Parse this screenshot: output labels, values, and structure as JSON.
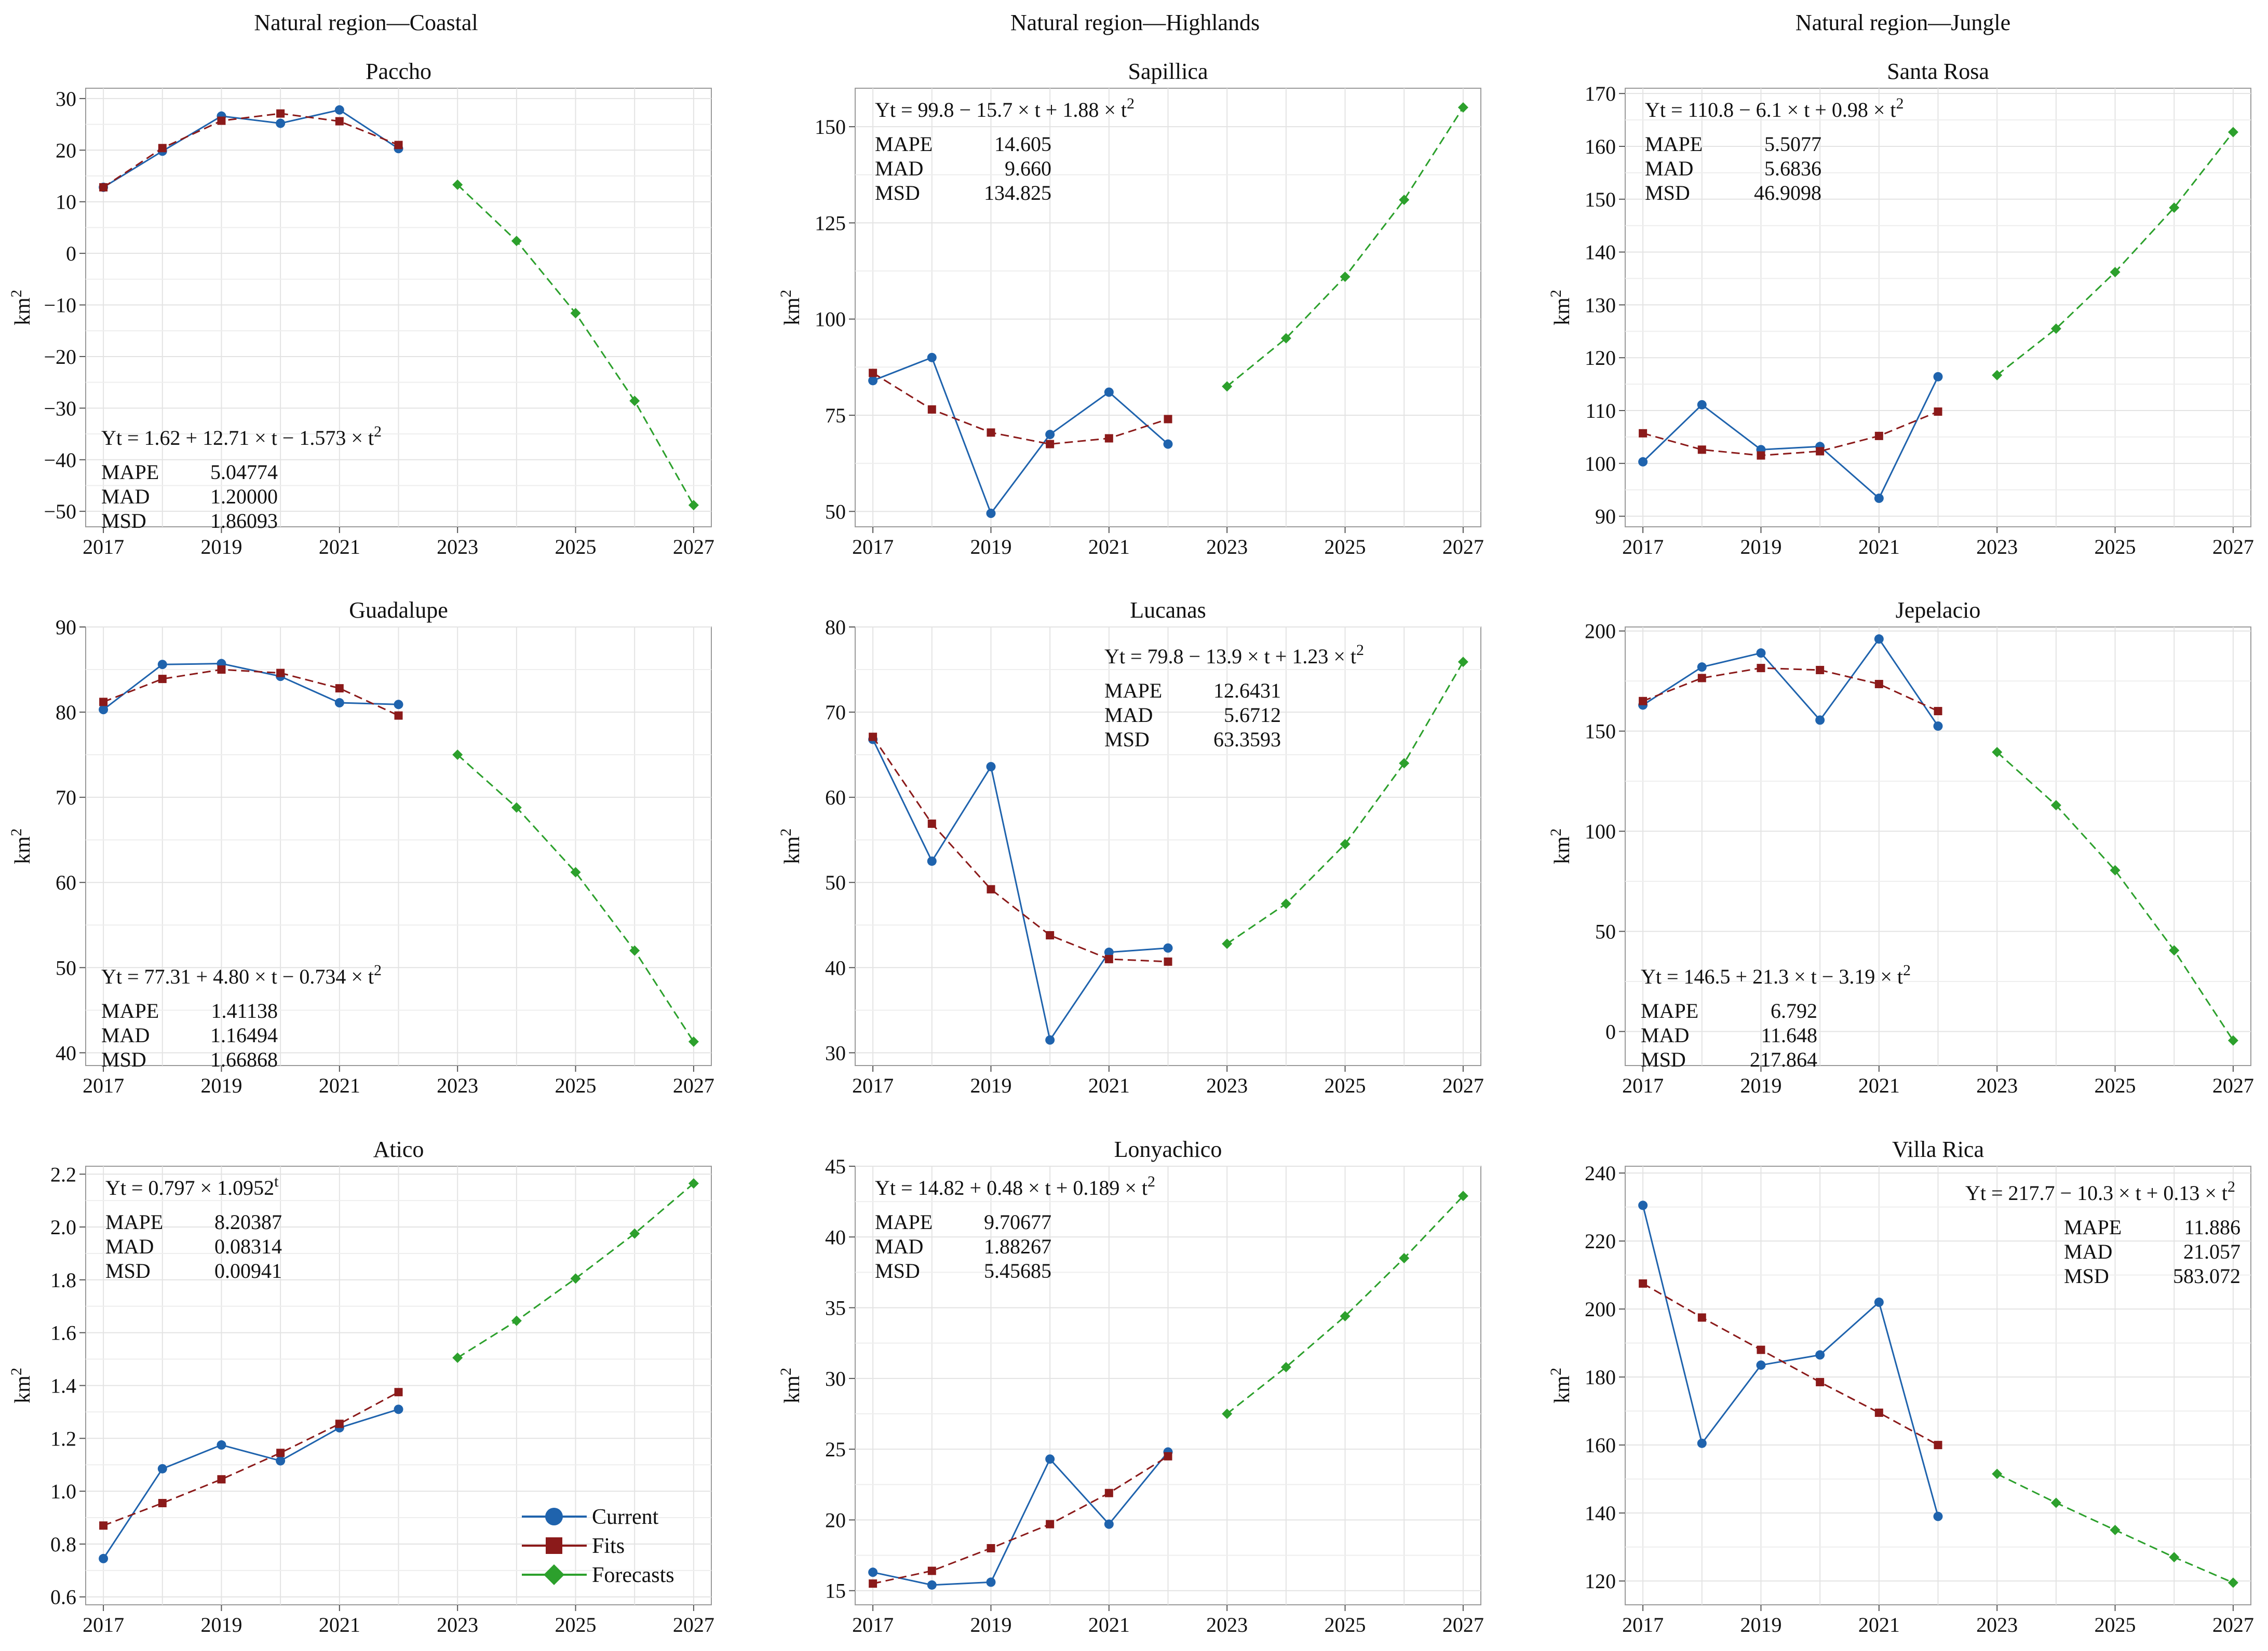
{
  "figure": {
    "region_headers": [
      "Natural region—Coastal",
      "Natural region—Highlands",
      "Natural region—Jungle"
    ],
    "legend": [
      "Current",
      "Fits",
      "Forecasts"
    ],
    "series_colors": {
      "Current": "#1f63ad",
      "Fits": "#8b1a1a",
      "Forecasts": "#2ca02c"
    }
  },
  "chart_data": [
    {
      "type": "line",
      "title": "Paccho",
      "region": "Natural region—Coastal",
      "xlabel": "",
      "ylabel": "km2",
      "x": [
        2017,
        2018,
        2019,
        2020,
        2021,
        2022,
        2023,
        2024,
        2025,
        2026,
        2027
      ],
      "xticks": [
        2017,
        2019,
        2021,
        2023,
        2025,
        2027
      ],
      "xticklabels": [
        "2017",
        "2019",
        "2021",
        "2023",
        "2025",
        "2027"
      ],
      "ylim": [
        -53,
        32
      ],
      "yticks": [
        -50,
        -40,
        -30,
        -20,
        -10,
        0,
        10,
        20,
        30
      ],
      "yticklabels": [
        "−50",
        "−40",
        "−30",
        "−20",
        "−10",
        "0",
        "10",
        "20",
        "30"
      ],
      "series": [
        {
          "name": "Current",
          "x": [
            2017,
            2018,
            2019,
            2020,
            2021,
            2022
          ],
          "values": [
            12.8,
            19.8,
            26.6,
            25.2,
            27.8,
            20.3
          ]
        },
        {
          "name": "Fits",
          "x": [
            2017,
            2018,
            2019,
            2020,
            2021,
            2022
          ],
          "values": [
            12.8,
            20.4,
            25.7,
            27.1,
            25.6,
            21.0
          ]
        },
        {
          "name": "Forecasts",
          "x": [
            2023,
            2024,
            2025,
            2026,
            2027
          ],
          "values": [
            13.3,
            2.4,
            -11.6,
            -28.6,
            -48.8
          ]
        }
      ],
      "equation": "Yt = 1.62 + 12.71 × t − 1.573 × t²",
      "stats": [
        [
          "MAPE",
          "5.04774"
        ],
        [
          "MAD",
          "1.20000"
        ],
        [
          "MSD",
          "1.86093"
        ]
      ],
      "anno_pos": "lower-left"
    },
    {
      "type": "line",
      "title": "Sapillica",
      "region": "Natural region—Highlands",
      "xlabel": "",
      "ylabel": "km2",
      "x": [
        2017,
        2018,
        2019,
        2020,
        2021,
        2022,
        2023,
        2024,
        2025,
        2026,
        2027
      ],
      "xticks": [
        2017,
        2019,
        2021,
        2023,
        2025,
        2027
      ],
      "xticklabels": [
        "2017",
        "2019",
        "2021",
        "2023",
        "2025",
        "2027"
      ],
      "ylim": [
        46,
        160
      ],
      "yticks": [
        50,
        75,
        100,
        125,
        150
      ],
      "yticklabels": [
        "50",
        "75",
        "100",
        "125",
        "150"
      ],
      "series": [
        {
          "name": "Current",
          "x": [
            2017,
            2018,
            2019,
            2020,
            2021,
            2022
          ],
          "values": [
            84,
            90,
            49.5,
            70,
            81,
            67.5
          ]
        },
        {
          "name": "Fits",
          "x": [
            2017,
            2018,
            2019,
            2020,
            2021,
            2022
          ],
          "values": [
            86,
            76.5,
            70.5,
            67.5,
            69,
            74
          ]
        },
        {
          "name": "Forecasts",
          "x": [
            2023,
            2024,
            2025,
            2026,
            2027
          ],
          "values": [
            82.5,
            95,
            111,
            131,
            155
          ]
        }
      ],
      "equation": "Yt = 99.8 − 15.7 × t + 1.88 × t²",
      "stats": [
        [
          "MAPE",
          "14.605"
        ],
        [
          "MAD",
          "9.660"
        ],
        [
          "MSD",
          "134.825"
        ]
      ],
      "anno_pos": "upper-left"
    },
    {
      "type": "line",
      "title": "Santa Rosa",
      "region": "Natural region—Jungle",
      "xlabel": "",
      "ylabel": "km2",
      "x": [
        2017,
        2018,
        2019,
        2020,
        2021,
        2022,
        2023,
        2024,
        2025,
        2026,
        2027
      ],
      "xticks": [
        2017,
        2019,
        2021,
        2023,
        2025,
        2027
      ],
      "xticklabels": [
        "2017",
        "2019",
        "2021",
        "2023",
        "2025",
        "2027"
      ],
      "ylim": [
        88,
        171
      ],
      "yticks": [
        90,
        100,
        110,
        120,
        130,
        140,
        150,
        160,
        170
      ],
      "yticklabels": [
        "90",
        "100",
        "110",
        "120",
        "130",
        "140",
        "150",
        "160",
        "170"
      ],
      "series": [
        {
          "name": "Current",
          "x": [
            2017,
            2018,
            2019,
            2020,
            2021,
            2022
          ],
          "values": [
            100.3,
            111.1,
            102.6,
            103.2,
            93.4,
            116.4
          ]
        },
        {
          "name": "Fits",
          "x": [
            2017,
            2018,
            2019,
            2020,
            2021,
            2022
          ],
          "values": [
            105.7,
            102.6,
            101.5,
            102.3,
            105.2,
            109.8
          ]
        },
        {
          "name": "Forecasts",
          "x": [
            2023,
            2024,
            2025,
            2026,
            2027
          ],
          "values": [
            116.7,
            125.5,
            136.2,
            148.4,
            162.7
          ]
        }
      ],
      "equation": "Yt = 110.8 − 6.1 × t + 0.98 × t²",
      "stats": [
        [
          "MAPE",
          "5.5077"
        ],
        [
          "MAD",
          "5.6836"
        ],
        [
          "MSD",
          "46.9098"
        ]
      ],
      "anno_pos": "upper-left"
    },
    {
      "type": "line",
      "title": "Guadalupe",
      "region": "Natural region—Coastal",
      "xlabel": "",
      "ylabel": "km2",
      "x": [
        2017,
        2018,
        2019,
        2020,
        2021,
        2022,
        2023,
        2024,
        2025,
        2026,
        2027
      ],
      "xticks": [
        2017,
        2019,
        2021,
        2023,
        2025,
        2027
      ],
      "xticklabels": [
        "2017",
        "2019",
        "2021",
        "2023",
        "2025",
        "2027"
      ],
      "ylim": [
        38.5,
        90
      ],
      "yticks": [
        40,
        50,
        60,
        70,
        80,
        90
      ],
      "yticklabels": [
        "40",
        "50",
        "60",
        "70",
        "80",
        "90"
      ],
      "series": [
        {
          "name": "Current",
          "x": [
            2017,
            2018,
            2019,
            2020,
            2021,
            2022
          ],
          "values": [
            80.3,
            85.6,
            85.7,
            84.2,
            81.1,
            80.9
          ]
        },
        {
          "name": "Fits",
          "x": [
            2017,
            2018,
            2019,
            2020,
            2021,
            2022
          ],
          "values": [
            81.2,
            83.9,
            85.0,
            84.6,
            82.8,
            79.6
          ]
        },
        {
          "name": "Forecasts",
          "x": [
            2023,
            2024,
            2025,
            2026,
            2027
          ],
          "values": [
            75.0,
            68.8,
            61.2,
            52.0,
            41.3
          ]
        }
      ],
      "equation": "Yt = 77.31 + 4.80 × t − 0.734 × t²",
      "stats": [
        [
          "MAPE",
          "1.41138"
        ],
        [
          "MAD",
          "1.16494"
        ],
        [
          "MSD",
          "1.66868"
        ]
      ],
      "anno_pos": "lower-left"
    },
    {
      "type": "line",
      "title": "Lucanas",
      "region": "Natural region—Highlands",
      "xlabel": "",
      "ylabel": "km2",
      "x": [
        2017,
        2018,
        2019,
        2020,
        2021,
        2022,
        2023,
        2024,
        2025,
        2026,
        2027
      ],
      "xticks": [
        2017,
        2019,
        2021,
        2023,
        2025,
        2027
      ],
      "xticklabels": [
        "2017",
        "2019",
        "2021",
        "2023",
        "2025",
        "2027"
      ],
      "ylim": [
        28.5,
        80
      ],
      "yticks": [
        30,
        40,
        50,
        60,
        70,
        80
      ],
      "yticklabels": [
        "30",
        "40",
        "50",
        "60",
        "70",
        "80"
      ],
      "series": [
        {
          "name": "Current",
          "x": [
            2017,
            2018,
            2019,
            2020,
            2021,
            2022
          ],
          "values": [
            66.8,
            52.5,
            63.6,
            31.5,
            41.8,
            42.3
          ]
        },
        {
          "name": "Fits",
          "x": [
            2017,
            2018,
            2019,
            2020,
            2021,
            2022
          ],
          "values": [
            67.1,
            56.9,
            49.2,
            43.8,
            41.0,
            40.7
          ]
        },
        {
          "name": "Forecasts",
          "x": [
            2023,
            2024,
            2025,
            2026,
            2027
          ],
          "values": [
            42.8,
            47.5,
            54.5,
            64.0,
            75.9
          ]
        }
      ],
      "equation": "Yt = 79.8 − 13.9 × t + 1.23 × t²",
      "stats": [
        [
          "MAPE",
          "12.6431"
        ],
        [
          "MAD",
          "5.6712"
        ],
        [
          "MSD",
          "63.3593"
        ]
      ],
      "anno_pos": "upper-center"
    },
    {
      "type": "line",
      "title": "Jepelacio",
      "region": "Natural region—Jungle",
      "xlabel": "",
      "ylabel": "km2",
      "x": [
        2017,
        2018,
        2019,
        2020,
        2021,
        2022,
        2023,
        2024,
        2025,
        2026,
        2027
      ],
      "xticks": [
        2017,
        2019,
        2021,
        2023,
        2025,
        2027
      ],
      "xticklabels": [
        "2017",
        "2019",
        "2021",
        "2023",
        "2025",
        "2027"
      ],
      "ylim": [
        -17,
        202
      ],
      "yticks": [
        0,
        50,
        100,
        150,
        200
      ],
      "yticklabels": [
        "0",
        "50",
        "100",
        "150",
        "200"
      ],
      "series": [
        {
          "name": "Current",
          "x": [
            2017,
            2018,
            2019,
            2020,
            2021,
            2022
          ],
          "values": [
            163,
            182,
            189,
            155.5,
            196,
            152.5
          ]
        },
        {
          "name": "Fits",
          "x": [
            2017,
            2018,
            2019,
            2020,
            2021,
            2022
          ],
          "values": [
            165,
            176.5,
            181.5,
            180.5,
            173.5,
            160
          ]
        },
        {
          "name": "Forecasts",
          "x": [
            2023,
            2024,
            2025,
            2026,
            2027
          ],
          "values": [
            139.5,
            113,
            80.5,
            40.5,
            -4.5
          ]
        }
      ],
      "equation": "Yt = 146.5 + 21.3 × t − 3.19 × t²",
      "stats": [
        [
          "MAPE",
          "6.792"
        ],
        [
          "MAD",
          "11.648"
        ],
        [
          "MSD",
          "217.864"
        ]
      ],
      "anno_pos": "lower-left"
    },
    {
      "type": "line",
      "title": "Atico",
      "region": "Natural region—Coastal",
      "xlabel": "",
      "ylabel": "km2",
      "x": [
        2017,
        2018,
        2019,
        2020,
        2021,
        2022,
        2023,
        2024,
        2025,
        2026,
        2027
      ],
      "xticks": [
        2017,
        2019,
        2021,
        2023,
        2025,
        2027
      ],
      "xticklabels": [
        "2017",
        "2019",
        "2021",
        "2023",
        "2025",
        "2027"
      ],
      "ylim": [
        0.57,
        2.23
      ],
      "yticks": [
        0.6,
        0.8,
        1.0,
        1.2,
        1.4,
        1.6,
        1.8,
        2.0,
        2.2
      ],
      "yticklabels": [
        "0.6",
        "0.8",
        "1.0",
        "1.2",
        "1.4",
        "1.6",
        "1.8",
        "2.0",
        "2.2"
      ],
      "series": [
        {
          "name": "Current",
          "x": [
            2017,
            2018,
            2019,
            2020,
            2021,
            2022
          ],
          "values": [
            0.745,
            1.085,
            1.175,
            1.115,
            1.24,
            1.31
          ]
        },
        {
          "name": "Fits",
          "x": [
            2017,
            2018,
            2019,
            2020,
            2021,
            2022
          ],
          "values": [
            0.87,
            0.955,
            1.045,
            1.145,
            1.255,
            1.375
          ]
        },
        {
          "name": "Forecasts",
          "x": [
            2023,
            2024,
            2025,
            2026,
            2027
          ],
          "values": [
            1.505,
            1.645,
            1.805,
            1.975,
            2.165
          ]
        }
      ],
      "equation": "Yt = 0.797 × 1.0952ᵗ",
      "stats": [
        [
          "MAPE",
          "8.20387"
        ],
        [
          "MAD",
          "0.08314"
        ],
        [
          "MSD",
          "0.00941"
        ]
      ],
      "anno_pos": "upper-left",
      "show_legend": true
    },
    {
      "type": "line",
      "title": "Lonyachico",
      "region": "Natural region—Highlands",
      "xlabel": "",
      "ylabel": "km2",
      "x": [
        2017,
        2018,
        2019,
        2020,
        2021,
        2022,
        2023,
        2024,
        2025,
        2026,
        2027
      ],
      "xticks": [
        2017,
        2019,
        2021,
        2023,
        2025,
        2027
      ],
      "xticklabels": [
        "2017",
        "2019",
        "2021",
        "2023",
        "2025",
        "2027"
      ],
      "ylim": [
        14,
        45
      ],
      "yticks": [
        15,
        20,
        25,
        30,
        35,
        40,
        45
      ],
      "yticklabels": [
        "15",
        "20",
        "25",
        "30",
        "35",
        "40",
        "45"
      ],
      "series": [
        {
          "name": "Current",
          "x": [
            2017,
            2018,
            2019,
            2020,
            2021,
            2022
          ],
          "values": [
            16.3,
            15.4,
            15.6,
            24.3,
            19.7,
            24.8
          ]
        },
        {
          "name": "Fits",
          "x": [
            2017,
            2018,
            2019,
            2020,
            2021,
            2022
          ],
          "values": [
            15.5,
            16.4,
            18.0,
            19.7,
            21.9,
            24.5
          ]
        },
        {
          "name": "Forecasts",
          "x": [
            2023,
            2024,
            2025,
            2026,
            2027
          ],
          "values": [
            27.5,
            30.8,
            34.4,
            38.5,
            42.9
          ]
        }
      ],
      "equation": "Yt = 14.82 + 0.48 × t + 0.189 × t²",
      "stats": [
        [
          "MAPE",
          "9.70677"
        ],
        [
          "MAD",
          "1.88267"
        ],
        [
          "MSD",
          "5.45685"
        ]
      ],
      "anno_pos": "upper-left"
    },
    {
      "type": "line",
      "title": "Villa Rica",
      "region": "Natural region—Jungle",
      "xlabel": "",
      "ylabel": "km2",
      "x": [
        2017,
        2018,
        2019,
        2020,
        2021,
        2022,
        2023,
        2024,
        2025,
        2026,
        2027
      ],
      "xticks": [
        2017,
        2019,
        2021,
        2023,
        2025,
        2027
      ],
      "xticklabels": [
        "2017",
        "2019",
        "2021",
        "2023",
        "2025",
        "2027"
      ],
      "ylim": [
        113,
        242
      ],
      "yticks": [
        120,
        140,
        160,
        180,
        200,
        220,
        240
      ],
      "yticklabels": [
        "120",
        "140",
        "160",
        "180",
        "200",
        "220",
        "240"
      ],
      "series": [
        {
          "name": "Current",
          "x": [
            2017,
            2018,
            2019,
            2020,
            2021,
            2022
          ],
          "values": [
            230.5,
            160.5,
            183.5,
            186.5,
            202,
            139
          ]
        },
        {
          "name": "Fits",
          "x": [
            2017,
            2018,
            2019,
            2020,
            2021,
            2022
          ],
          "values": [
            207.5,
            197.5,
            188,
            178.5,
            169.5,
            160
          ]
        },
        {
          "name": "Forecasts",
          "x": [
            2023,
            2024,
            2025,
            2026,
            2027
          ],
          "values": [
            151.5,
            143,
            135,
            127,
            119.5
          ]
        }
      ],
      "equation": "Yt = 217.7 − 10.3 × t + 0.13 × t²",
      "stats": [
        [
          "MAPE",
          "11.886"
        ],
        [
          "MAD",
          "21.057"
        ],
        [
          "MSD",
          "583.072"
        ]
      ],
      "anno_pos": "upper-right"
    }
  ]
}
